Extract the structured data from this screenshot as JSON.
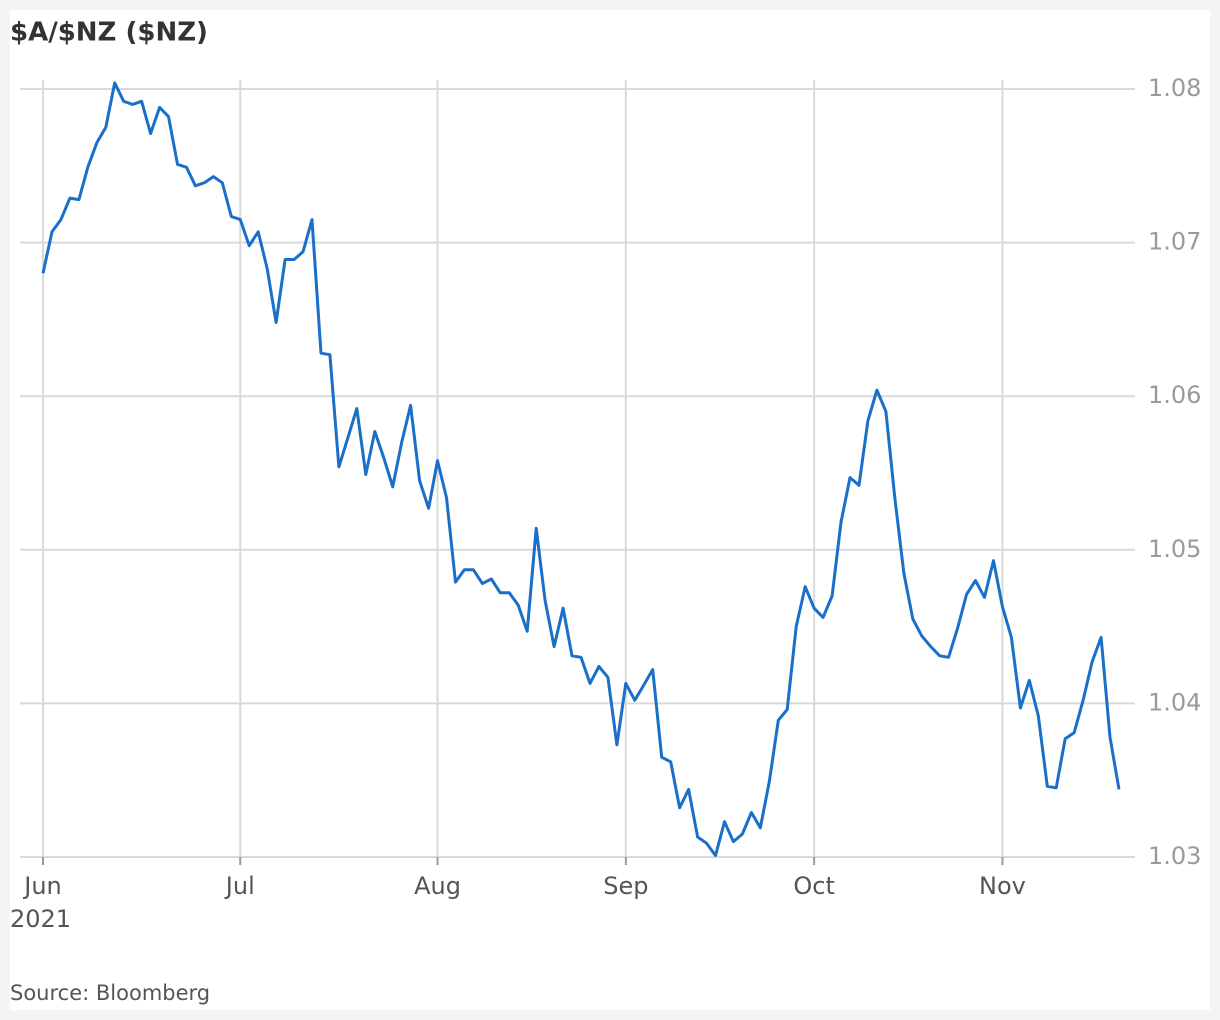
{
  "chart_data": {
    "type": "line",
    "title": "$A/$NZ ($NZ)",
    "year": "2021",
    "source": "Source: Bloomberg",
    "color": "#1a6fc9",
    "grid": true,
    "y_axis_side": "right",
    "ylim": [
      1.03,
      1.08
    ],
    "yticks": [
      1.03,
      1.04,
      1.05,
      1.06,
      1.07,
      1.08
    ],
    "categories": [
      "Jun",
      null,
      null,
      null,
      null,
      null,
      null,
      null,
      null,
      null,
      null,
      null,
      null,
      null,
      null,
      null,
      null,
      null,
      null,
      null,
      null,
      null,
      "Jul",
      null,
      null,
      null,
      null,
      null,
      null,
      null,
      null,
      null,
      null,
      null,
      null,
      null,
      null,
      null,
      null,
      null,
      null,
      null,
      null,
      null,
      "Aug",
      null,
      null,
      null,
      null,
      null,
      null,
      null,
      null,
      null,
      null,
      null,
      null,
      null,
      null,
      null,
      null,
      null,
      null,
      null,
      null,
      "Sep",
      null,
      null,
      null,
      null,
      null,
      null,
      null,
      null,
      null,
      null,
      null,
      null,
      null,
      null,
      null,
      null,
      null,
      null,
      null,
      null,
      "Oct",
      null,
      null,
      null,
      null,
      null,
      null,
      null,
      null,
      null,
      null,
      null,
      null,
      null,
      null,
      null,
      null,
      null,
      null,
      null,
      null,
      "Nov",
      null,
      null,
      null,
      null,
      null,
      null,
      null,
      null,
      null,
      null,
      null,
      null,
      null
    ],
    "values": [
      1.068,
      1.0707,
      1.0715,
      1.0729,
      1.0728,
      1.0749,
      1.0765,
      1.0775,
      1.0804,
      1.0792,
      1.079,
      1.0792,
      1.0771,
      1.0788,
      1.0782,
      1.0751,
      1.0749,
      1.0737,
      1.0739,
      1.0743,
      1.0739,
      1.0717,
      1.0715,
      1.0698,
      1.0707,
      1.0683,
      1.0648,
      1.0689,
      1.0689,
      1.0694,
      1.0715,
      1.0628,
      1.0627,
      1.0554,
      1.0573,
      1.0592,
      1.0549,
      1.0577,
      1.056,
      1.0541,
      1.057,
      1.0594,
      1.0545,
      1.0527,
      1.0558,
      1.0534,
      1.0479,
      1.0487,
      1.0487,
      1.0478,
      1.0481,
      1.0472,
      1.0472,
      1.0464,
      1.0447,
      1.0514,
      1.0467,
      1.0437,
      1.0462,
      1.0431,
      1.043,
      1.0413,
      1.0424,
      1.0417,
      1.0373,
      1.0413,
      1.0402,
      1.0412,
      1.0422,
      1.0365,
      1.0362,
      1.0332,
      1.0344,
      1.0313,
      1.0309,
      1.0301,
      1.0323,
      1.031,
      1.0315,
      1.0329,
      1.0319,
      1.0349,
      1.0389,
      1.0396,
      1.045,
      1.0476,
      1.0462,
      1.0456,
      1.047,
      1.0518,
      1.0547,
      1.0542,
      1.0584,
      1.0604,
      1.059,
      1.0534,
      1.0485,
      1.0455,
      1.0444,
      1.0437,
      1.0431,
      1.043,
      1.0449,
      1.0471,
      1.048,
      1.0469,
      1.0493,
      1.0463,
      1.0443,
      1.0397,
      1.0415,
      1.0392,
      1.0346,
      1.0345,
      1.0377,
      1.0381,
      1.0402,
      1.0427,
      1.0443,
      1.0378,
      1.0344
    ]
  }
}
